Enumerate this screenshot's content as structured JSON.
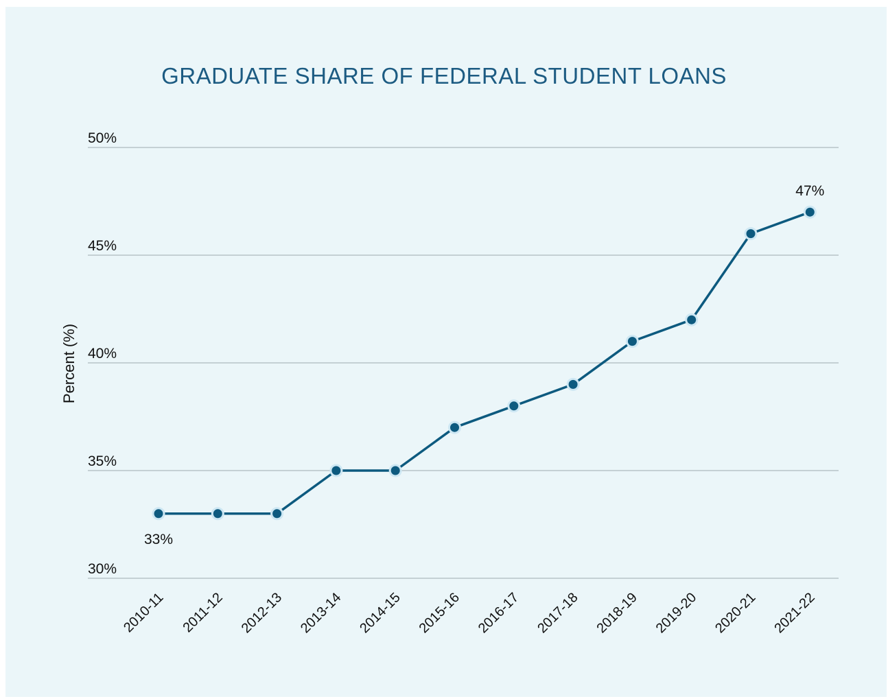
{
  "chart_data": {
    "type": "line",
    "title": "GRADUATE SHARE OF FEDERAL STUDENT LOANS",
    "xlabel": "",
    "ylabel": "Percent (%)",
    "categories": [
      "2010-11",
      "2011-12",
      "2012-13",
      "2013-14",
      "2014-15",
      "2015-16",
      "2016-17",
      "2017-18",
      "2018-19",
      "2019-20",
      "2020-21",
      "2021-22"
    ],
    "values": [
      33,
      33,
      33,
      35,
      35,
      37,
      38,
      39,
      41,
      42,
      46,
      47
    ],
    "ylim": [
      30,
      50
    ],
    "yticks": [
      30,
      35,
      40,
      45,
      50
    ],
    "ytick_labels": [
      "30%",
      "35%",
      "40%",
      "45%",
      "50%"
    ],
    "grid": true,
    "annotations": [
      {
        "index": 0,
        "text": "33%",
        "position": "below"
      },
      {
        "index": 11,
        "text": "47%",
        "position": "above"
      }
    ],
    "colors": {
      "background": "#ebf6f9",
      "title": "#1c5b82",
      "line": "#0d5a7f",
      "marker": "#0d5a7f",
      "marker_halo": "#cde7f3",
      "grid": "#b7c3c8"
    }
  }
}
